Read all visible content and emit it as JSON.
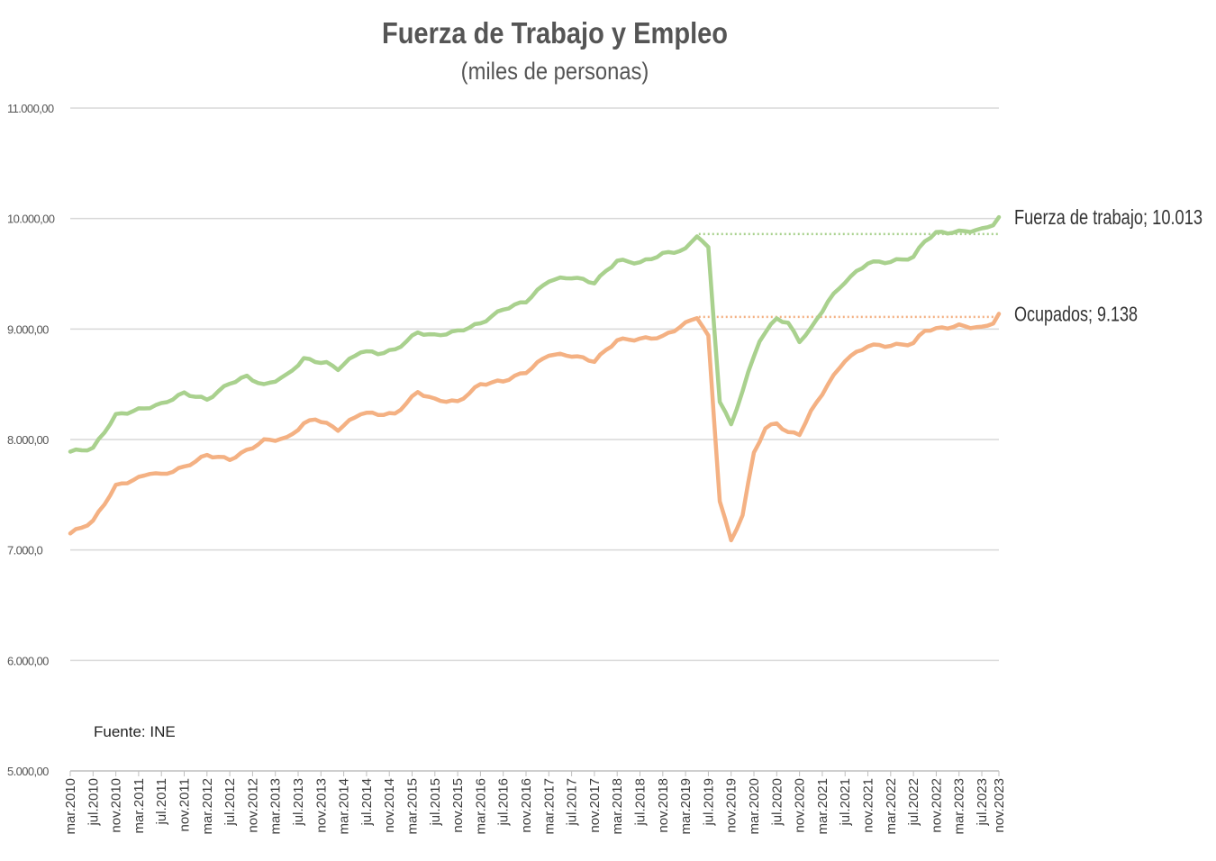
{
  "chart_data": {
    "type": "line",
    "title": "Fuerza de Trabajo y Empleo",
    "subtitle": "(miles de personas)",
    "source": "Fuente: INE",
    "ylim": [
      5000,
      11000
    ],
    "y_ticks": [
      "5.000,00",
      "6.000,00",
      "7.000,0",
      "8.000,00",
      "9.000,00",
      "10.000,00",
      "11.000,00"
    ],
    "y_tick_values": [
      5000,
      6000,
      7000,
      8000,
      9000,
      10000,
      11000
    ],
    "grid": "horizontal",
    "x_start": "mar.2010",
    "x_tick_labels": [
      "mar.2010",
      "jul.2010",
      "nov.2010",
      "mar.2011",
      "jul.2011",
      "nov.2011",
      "mar.2012",
      "jul.2012",
      "nov.2012",
      "mar.2013",
      "jul.2013",
      "nov.2013",
      "mar.2014",
      "jul.2014",
      "nov.2014",
      "mar.2015",
      "jul.2015",
      "nov.2015",
      "mar.2016",
      "jul.2016",
      "nov.2016",
      "mar.2017",
      "jul.2017",
      "nov.2017",
      "mar.2018",
      "jul.2018",
      "nov.2018",
      "mar.2019",
      "jul.2019",
      "nov.2019",
      "mar.2020",
      "jul.2020",
      "nov.2020",
      "mar.2021",
      "jul.2021",
      "nov.2021",
      "mar.2022",
      "jul.2022",
      "nov.2022",
      "mar.2023",
      "jul.2023",
      "nov.2023"
    ],
    "series": [
      {
        "name": "Fuerza de trabajo",
        "end_label": "Fuerza de trabajo; 10.013",
        "color": "#a9d18e",
        "reference_value": 9860,
        "key_points": [
          [
            0,
            7890
          ],
          [
            4,
            7920
          ],
          [
            8,
            8220
          ],
          [
            12,
            8270
          ],
          [
            16,
            8320
          ],
          [
            20,
            8420
          ],
          [
            24,
            8360
          ],
          [
            28,
            8510
          ],
          [
            31,
            8570
          ],
          [
            34,
            8490
          ],
          [
            38,
            8580
          ],
          [
            41,
            8730
          ],
          [
            45,
            8690
          ],
          [
            47,
            8640
          ],
          [
            51,
            8800
          ],
          [
            54,
            8780
          ],
          [
            57,
            8810
          ],
          [
            61,
            8970
          ],
          [
            64,
            8940
          ],
          [
            68,
            8980
          ],
          [
            72,
            9050
          ],
          [
            76,
            9180
          ],
          [
            80,
            9250
          ],
          [
            84,
            9440
          ],
          [
            88,
            9470
          ],
          [
            92,
            9420
          ],
          [
            96,
            9620
          ],
          [
            100,
            9600
          ],
          [
            104,
            9680
          ],
          [
            108,
            9720
          ],
          [
            110,
            9850
          ],
          [
            112,
            9730
          ],
          [
            114,
            8350
          ],
          [
            116,
            8130
          ],
          [
            119,
            8600
          ],
          [
            121,
            8900
          ],
          [
            124,
            9100
          ],
          [
            126,
            9050
          ],
          [
            128,
            8890
          ],
          [
            130,
            9000
          ],
          [
            133,
            9250
          ],
          [
            136,
            9430
          ],
          [
            140,
            9600
          ],
          [
            144,
            9610
          ],
          [
            148,
            9650
          ],
          [
            150,
            9800
          ],
          [
            152,
            9870
          ],
          [
            156,
            9880
          ],
          [
            160,
            9900
          ],
          [
            162,
            9950
          ],
          [
            163,
            10013
          ]
        ]
      },
      {
        "name": "Ocupados",
        "end_label": "Ocupados; 9.138",
        "color": "#f4b183",
        "reference_value": 9110,
        "key_points": [
          [
            0,
            7150
          ],
          [
            4,
            7260
          ],
          [
            8,
            7580
          ],
          [
            12,
            7650
          ],
          [
            14,
            7700
          ],
          [
            16,
            7680
          ],
          [
            20,
            7750
          ],
          [
            24,
            7860
          ],
          [
            28,
            7820
          ],
          [
            31,
            7900
          ],
          [
            34,
            7990
          ],
          [
            38,
            8010
          ],
          [
            41,
            8140
          ],
          [
            43,
            8190
          ],
          [
            47,
            8090
          ],
          [
            51,
            8240
          ],
          [
            54,
            8230
          ],
          [
            57,
            8230
          ],
          [
            61,
            8430
          ],
          [
            64,
            8360
          ],
          [
            68,
            8340
          ],
          [
            72,
            8500
          ],
          [
            76,
            8530
          ],
          [
            80,
            8610
          ],
          [
            84,
            8770
          ],
          [
            88,
            8760
          ],
          [
            92,
            8710
          ],
          [
            96,
            8900
          ],
          [
            100,
            8910
          ],
          [
            104,
            8930
          ],
          [
            108,
            9050
          ],
          [
            110,
            9110
          ],
          [
            112,
            8930
          ],
          [
            114,
            7450
          ],
          [
            116,
            7080
          ],
          [
            118,
            7320
          ],
          [
            120,
            7880
          ],
          [
            122,
            8100
          ],
          [
            124,
            8150
          ],
          [
            126,
            8060
          ],
          [
            128,
            8050
          ],
          [
            130,
            8250
          ],
          [
            133,
            8500
          ],
          [
            136,
            8720
          ],
          [
            140,
            8850
          ],
          [
            144,
            8850
          ],
          [
            148,
            8870
          ],
          [
            150,
            8990
          ],
          [
            152,
            9000
          ],
          [
            156,
            9030
          ],
          [
            160,
            9010
          ],
          [
            162,
            9060
          ],
          [
            163,
            9138
          ]
        ]
      }
    ]
  }
}
